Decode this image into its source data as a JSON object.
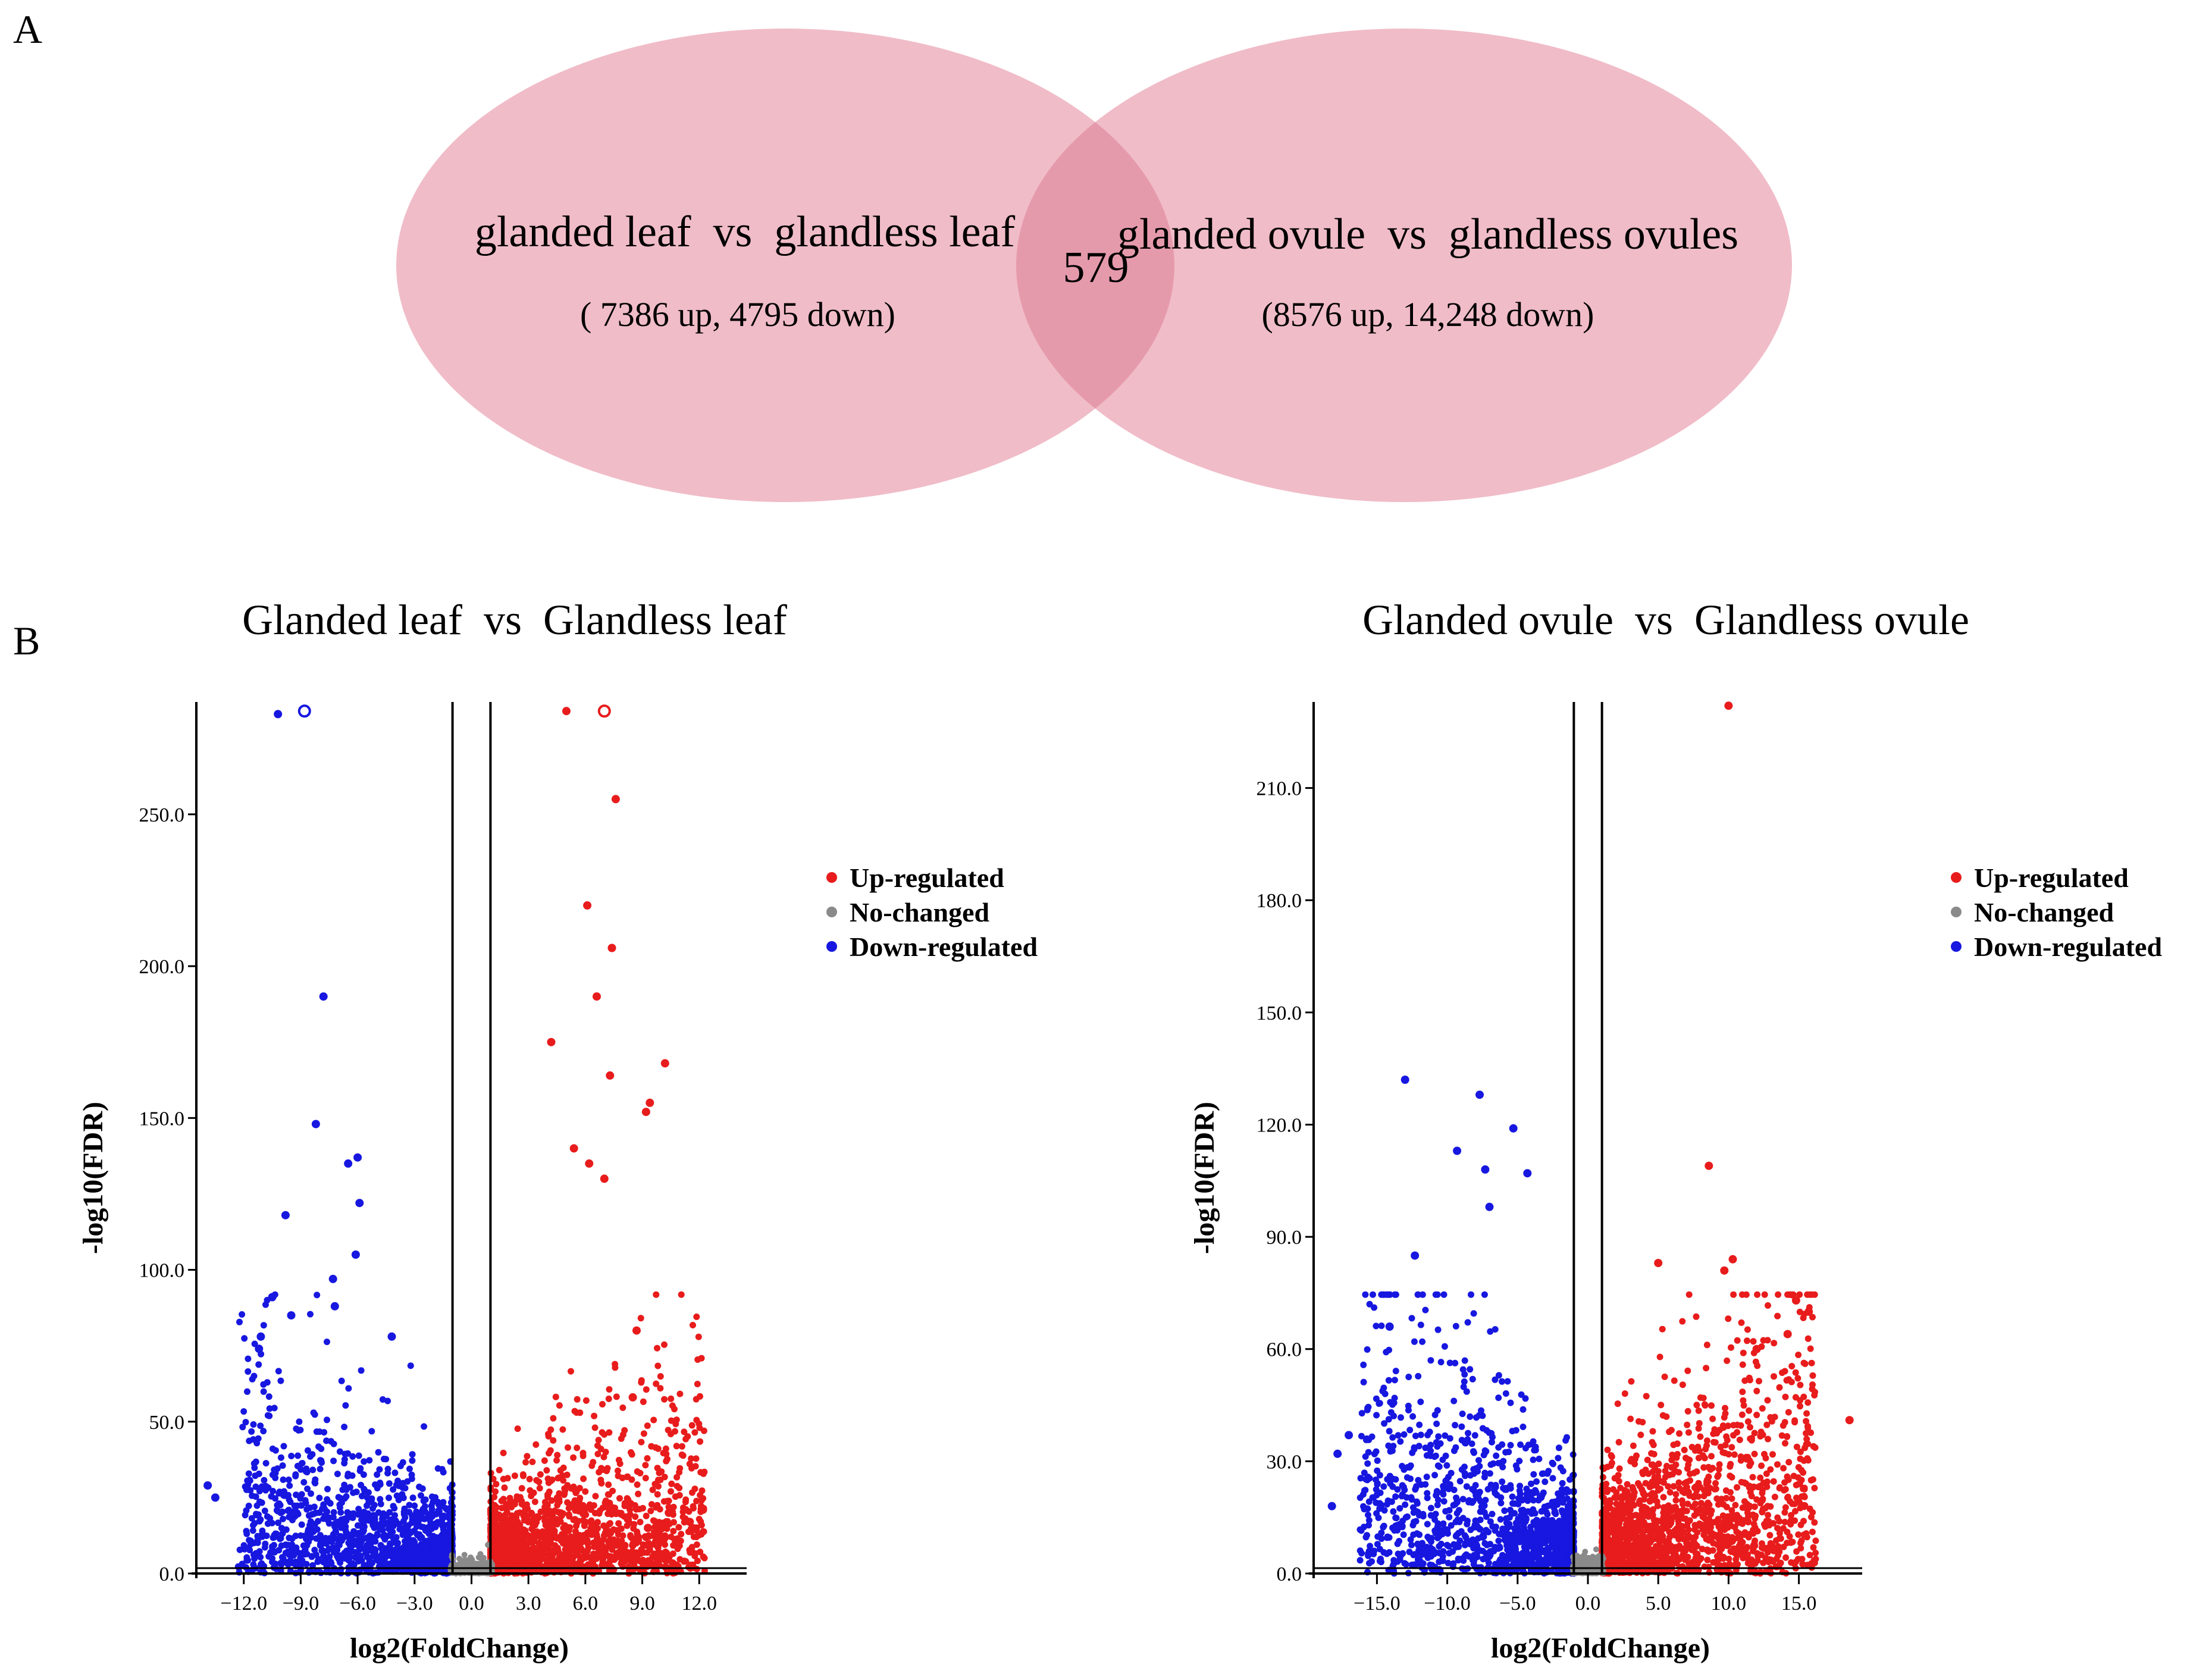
{
  "colors": {
    "ellipse": "#f0bcc8",
    "overlap": "#e59aac",
    "up": "#e81c1c",
    "none": "#8a8a8a",
    "down": "#1717e0",
    "axis": "#000000"
  },
  "venn": {
    "panel_label": "A",
    "left": {
      "title": "glanded leaf  vs  glandless leaf",
      "counts": "( 7386 up, 4795 down)"
    },
    "right": {
      "title": "glanded ovule  vs  glandless ovules",
      "counts": "(8576 up, 14,248 down)"
    },
    "overlap": "579"
  },
  "volcano_panel_label": "B",
  "legend": {
    "up": "Up-regulated",
    "none": "No-changed",
    "down": "Down-regulated"
  },
  "chart_data": [
    {
      "type": "scatter",
      "title": "Glanded leaf  vs  Glandless leaf",
      "xlabel": "log2(FoldChange)",
      "ylabel": "-log10(FDR)",
      "xlim": [
        -14.5,
        14.5
      ],
      "ylim": [
        0,
        287
      ],
      "xticks": [
        -12,
        -9,
        -6,
        -3,
        0,
        3,
        6,
        9,
        12
      ],
      "xtick_labels": [
        "−12.0",
        "−9.0",
        "−6.0",
        "−3.0",
        "0.0",
        "3.0",
        "6.0",
        "9.0",
        "12.0"
      ],
      "yticks": [
        0,
        50,
        100,
        150,
        200,
        250
      ],
      "ytick_labels": [
        "0.0",
        "50.0",
        "100.0",
        "150.0",
        "200.0",
        "250.0"
      ],
      "thresholds": [
        -1,
        1
      ],
      "legend_position": "right",
      "series": {
        "up": [
          [
            5.0,
            284
          ],
          [
            7.0,
            284
          ],
          [
            7.6,
            255
          ],
          [
            6.1,
            220
          ],
          [
            7.4,
            206
          ],
          [
            6.6,
            190
          ],
          [
            10.2,
            168
          ],
          [
            7.3,
            164
          ],
          [
            9.4,
            155
          ],
          [
            9.2,
            152
          ],
          [
            5.4,
            140
          ],
          [
            6.2,
            135
          ],
          [
            7.0,
            130
          ],
          [
            8.7,
            80
          ],
          [
            8.5,
            58
          ],
          [
            10.4,
            20
          ],
          [
            12.2,
            21
          ],
          [
            9.3,
            15
          ],
          [
            11.5,
            17
          ],
          [
            4.2,
            175
          ]
        ],
        "down": [
          [
            -10.2,
            283
          ],
          [
            -8.8,
            284
          ],
          [
            -7.8,
            190
          ],
          [
            -8.2,
            148
          ],
          [
            -6.0,
            137
          ],
          [
            -6.5,
            135
          ],
          [
            -5.9,
            122
          ],
          [
            -9.8,
            118
          ],
          [
            -6.1,
            105
          ],
          [
            -7.3,
            97
          ],
          [
            -10.5,
            91
          ],
          [
            -9.5,
            85
          ],
          [
            -7.2,
            88
          ],
          [
            -11.1,
            78
          ],
          [
            -11.2,
            74
          ],
          [
            -13.9,
            29
          ],
          [
            -13.5,
            25
          ],
          [
            -4.2,
            78
          ]
        ],
        "none_clouds": [
          [
            -1,
            1
          ],
          [
            -1,
            1
          ]
        ]
      }
    },
    {
      "type": "scatter",
      "title": "Glanded ovule  vs  Glandless ovule",
      "xlabel": "log2(FoldChange)",
      "ylabel": "-log10(FDR)",
      "xlim": [
        -19.5,
        19.5
      ],
      "ylim": [
        0,
        233
      ],
      "xticks": [
        -15,
        -10,
        -5,
        0,
        5,
        10,
        15
      ],
      "xtick_labels": [
        "−15.0",
        "−10.0",
        "−5.0",
        "0.0",
        "5.0",
        "10.0",
        "15.0"
      ],
      "yticks": [
        0,
        30,
        60,
        90,
        120,
        150,
        180,
        210
      ],
      "ytick_labels": [
        "0.0",
        "30.0",
        "60.0",
        "90.0",
        "120.0",
        "150.0",
        "180.0",
        "210.0"
      ],
      "thresholds": [
        -1,
        1
      ],
      "legend_position": "right",
      "series": {
        "up": [
          [
            10.0,
            232
          ],
          [
            8.6,
            109
          ],
          [
            10.3,
            84
          ],
          [
            5.0,
            83
          ],
          [
            9.7,
            81
          ],
          [
            14.8,
            73
          ],
          [
            15.7,
            70
          ],
          [
            18.6,
            41
          ],
          [
            14.2,
            64
          ],
          [
            12.0,
            60
          ]
        ],
        "down": [
          [
            -13.0,
            132
          ],
          [
            -7.7,
            128
          ],
          [
            -5.3,
            119
          ],
          [
            -7.3,
            108
          ],
          [
            -4.3,
            107
          ],
          [
            -9.3,
            113
          ],
          [
            -12.3,
            85
          ],
          [
            -14.1,
            66
          ],
          [
            -17.0,
            37
          ],
          [
            -17.8,
            32
          ],
          [
            -18.2,
            18
          ],
          [
            -7.0,
            98
          ]
        ],
        "none_clouds": [
          [
            -1,
            1
          ]
        ]
      }
    }
  ]
}
